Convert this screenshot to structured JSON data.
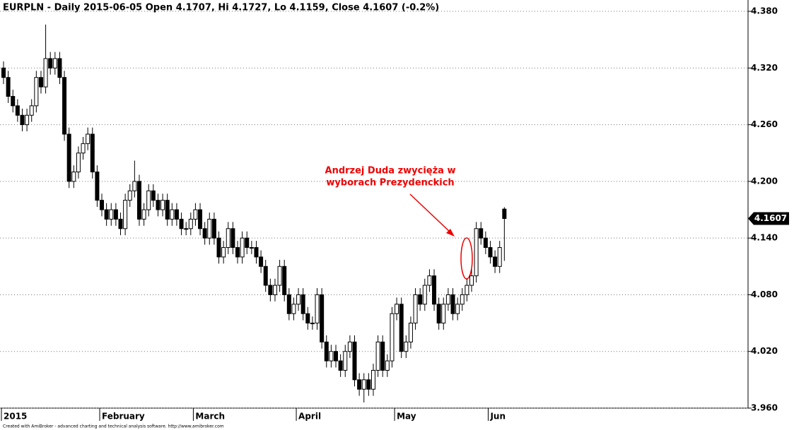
{
  "chart_data": {
    "type": "candlestick",
    "title": "EURPLN - Daily 2015-06-05 Open 4.1707, Hi 4.1727, Lo 4.1159, Close 4.1607 (-0.2%)",
    "annotation": [
      "Andrzej Duda zwycięża w",
      "wyborach Prezydenckich"
    ],
    "footer": "Created with AmiBroker - advanced charting and technical analysis software. http://www.amibroker.com",
    "categories": [
      "2015",
      null,
      null,
      null,
      null,
      null,
      null,
      null,
      null,
      null,
      null,
      null,
      null,
      null,
      null,
      null,
      null,
      null,
      null,
      null,
      null,
      "February",
      null,
      null,
      null,
      null,
      null,
      null,
      null,
      null,
      null,
      null,
      null,
      null,
      null,
      null,
      null,
      null,
      null,
      null,
      null,
      "March",
      null,
      null,
      null,
      null,
      null,
      null,
      null,
      null,
      null,
      null,
      null,
      null,
      null,
      null,
      null,
      null,
      null,
      null,
      null,
      null,
      null,
      "April",
      null,
      null,
      null,
      null,
      null,
      null,
      null,
      null,
      null,
      null,
      null,
      null,
      null,
      null,
      null,
      null,
      null,
      null,
      null,
      null,
      "May",
      null,
      null,
      null,
      null,
      null,
      null,
      null,
      null,
      null,
      null,
      null,
      null,
      null,
      null,
      null,
      null,
      null,
      null,
      null,
      "Jun",
      null,
      null,
      null
    ],
    "open": [
      4.32,
      4.31,
      4.29,
      4.28,
      4.27,
      4.26,
      4.27,
      4.28,
      4.31,
      4.3,
      4.33,
      4.32,
      4.33,
      4.31,
      4.25,
      4.2,
      4.21,
      4.23,
      4.24,
      4.25,
      4.21,
      4.18,
      4.17,
      4.16,
      4.17,
      4.16,
      4.15,
      4.18,
      4.19,
      4.2,
      4.16,
      4.17,
      4.19,
      4.18,
      4.17,
      4.18,
      4.16,
      4.17,
      4.16,
      4.15,
      4.15,
      4.16,
      4.17,
      4.15,
      4.14,
      4.16,
      4.14,
      4.12,
      4.13,
      4.15,
      4.13,
      4.12,
      4.14,
      4.13,
      4.13,
      4.12,
      4.11,
      4.09,
      4.08,
      4.09,
      4.11,
      4.08,
      4.06,
      4.07,
      4.08,
      4.06,
      4.05,
      4.05,
      4.08,
      4.03,
      4.01,
      4.02,
      4.01,
      4.0,
      4.02,
      4.03,
      3.99,
      3.98,
      3.99,
      3.98,
      4.0,
      4.03,
      4.0,
      4.01,
      4.06,
      4.07,
      4.02,
      4.03,
      4.05,
      4.08,
      4.07,
      4.09,
      4.1,
      4.07,
      4.05,
      4.07,
      4.08,
      4.06,
      4.07,
      4.08,
      4.09,
      4.1,
      4.15,
      4.14,
      4.13,
      4.12,
      4.11,
      4.1707
    ],
    "high": [
      4.327,
      4.317,
      4.297,
      4.287,
      4.277,
      4.277,
      4.287,
      4.317,
      4.317,
      4.366,
      4.337,
      4.337,
      4.337,
      4.317,
      4.257,
      4.217,
      4.237,
      4.247,
      4.257,
      4.257,
      4.217,
      4.187,
      4.177,
      4.177,
      4.177,
      4.167,
      4.187,
      4.197,
      4.222,
      4.207,
      4.177,
      4.197,
      4.197,
      4.187,
      4.187,
      4.187,
      4.177,
      4.177,
      4.167,
      4.157,
      4.167,
      4.177,
      4.177,
      4.157,
      4.167,
      4.167,
      4.147,
      4.137,
      4.157,
      4.157,
      4.137,
      4.147,
      4.147,
      4.137,
      4.137,
      4.127,
      4.117,
      4.097,
      4.097,
      4.117,
      4.117,
      4.087,
      4.077,
      4.087,
      4.087,
      4.067,
      4.057,
      4.087,
      4.087,
      4.037,
      4.027,
      4.027,
      4.017,
      4.027,
      4.037,
      4.037,
      3.997,
      3.997,
      3.997,
      4.007,
      4.037,
      4.037,
      4.017,
      4.067,
      4.077,
      4.077,
      4.037,
      4.057,
      4.087,
      4.087,
      4.097,
      4.107,
      4.107,
      4.077,
      4.077,
      4.087,
      4.087,
      4.077,
      4.087,
      4.097,
      4.107,
      4.157,
      4.157,
      4.147,
      4.137,
      4.127,
      4.137,
      4.1727
    ],
    "low": [
      4.303,
      4.283,
      4.273,
      4.263,
      4.253,
      4.253,
      4.263,
      4.273,
      4.293,
      4.293,
      4.313,
      4.313,
      4.303,
      4.243,
      4.193,
      4.193,
      4.203,
      4.223,
      4.233,
      4.203,
      4.173,
      4.163,
      4.153,
      4.153,
      4.153,
      4.143,
      4.143,
      4.173,
      4.183,
      4.153,
      4.153,
      4.163,
      4.173,
      4.163,
      4.163,
      4.153,
      4.153,
      4.153,
      4.143,
      4.143,
      4.143,
      4.153,
      4.143,
      4.133,
      4.133,
      4.133,
      4.113,
      4.113,
      4.123,
      4.123,
      4.113,
      4.113,
      4.123,
      4.123,
      4.113,
      4.103,
      4.083,
      4.073,
      4.073,
      4.083,
      4.073,
      4.053,
      4.053,
      4.063,
      4.053,
      4.043,
      4.043,
      4.043,
      4.023,
      4.003,
      4.003,
      4.003,
      3.993,
      3.993,
      4.013,
      3.983,
      3.973,
      3.966,
      3.973,
      3.973,
      3.993,
      3.993,
      3.993,
      4.003,
      4.053,
      4.013,
      4.013,
      4.023,
      4.043,
      4.063,
      4.063,
      4.083,
      4.063,
      4.043,
      4.043,
      4.063,
      4.053,
      4.053,
      4.063,
      4.073,
      4.083,
      4.093,
      4.133,
      4.123,
      4.113,
      4.103,
      4.103,
      4.1159
    ],
    "close": [
      4.31,
      4.29,
      4.28,
      4.27,
      4.26,
      4.27,
      4.28,
      4.31,
      4.3,
      4.33,
      4.32,
      4.33,
      4.31,
      4.25,
      4.2,
      4.21,
      4.23,
      4.24,
      4.25,
      4.21,
      4.18,
      4.17,
      4.16,
      4.17,
      4.16,
      4.15,
      4.18,
      4.19,
      4.2,
      4.16,
      4.17,
      4.19,
      4.18,
      4.17,
      4.18,
      4.16,
      4.17,
      4.16,
      4.15,
      4.15,
      4.16,
      4.17,
      4.15,
      4.14,
      4.16,
      4.14,
      4.12,
      4.13,
      4.15,
      4.13,
      4.12,
      4.14,
      4.13,
      4.13,
      4.12,
      4.11,
      4.09,
      4.08,
      4.09,
      4.11,
      4.08,
      4.06,
      4.07,
      4.08,
      4.06,
      4.05,
      4.05,
      4.08,
      4.03,
      4.01,
      4.02,
      4.01,
      4.0,
      4.02,
      4.03,
      3.99,
      3.98,
      3.99,
      3.98,
      4.0,
      4.03,
      4.0,
      4.01,
      4.06,
      4.07,
      4.02,
      4.03,
      4.05,
      4.08,
      4.07,
      4.09,
      4.1,
      4.07,
      4.05,
      4.07,
      4.08,
      4.06,
      4.07,
      4.08,
      4.09,
      4.1,
      4.15,
      4.14,
      4.13,
      4.12,
      4.11,
      4.13,
      4.1607
    ],
    "up_color": "#ffffff",
    "down_color": "#000000",
    "ylim": [
      3.96,
      4.392
    ],
    "yticks": [
      {
        "value": 3.96,
        "label": "3.960"
      },
      {
        "value": 4.02,
        "label": "4.020"
      },
      {
        "value": 4.08,
        "label": "4.080"
      },
      {
        "value": 4.14,
        "label": "4.140"
      },
      {
        "value": 4.2,
        "label": "4.200"
      },
      {
        "value": 4.26,
        "label": "4.260"
      },
      {
        "value": 4.32,
        "label": "4.320"
      },
      {
        "value": 4.38,
        "label": "4.380"
      }
    ],
    "grid": true
  }
}
